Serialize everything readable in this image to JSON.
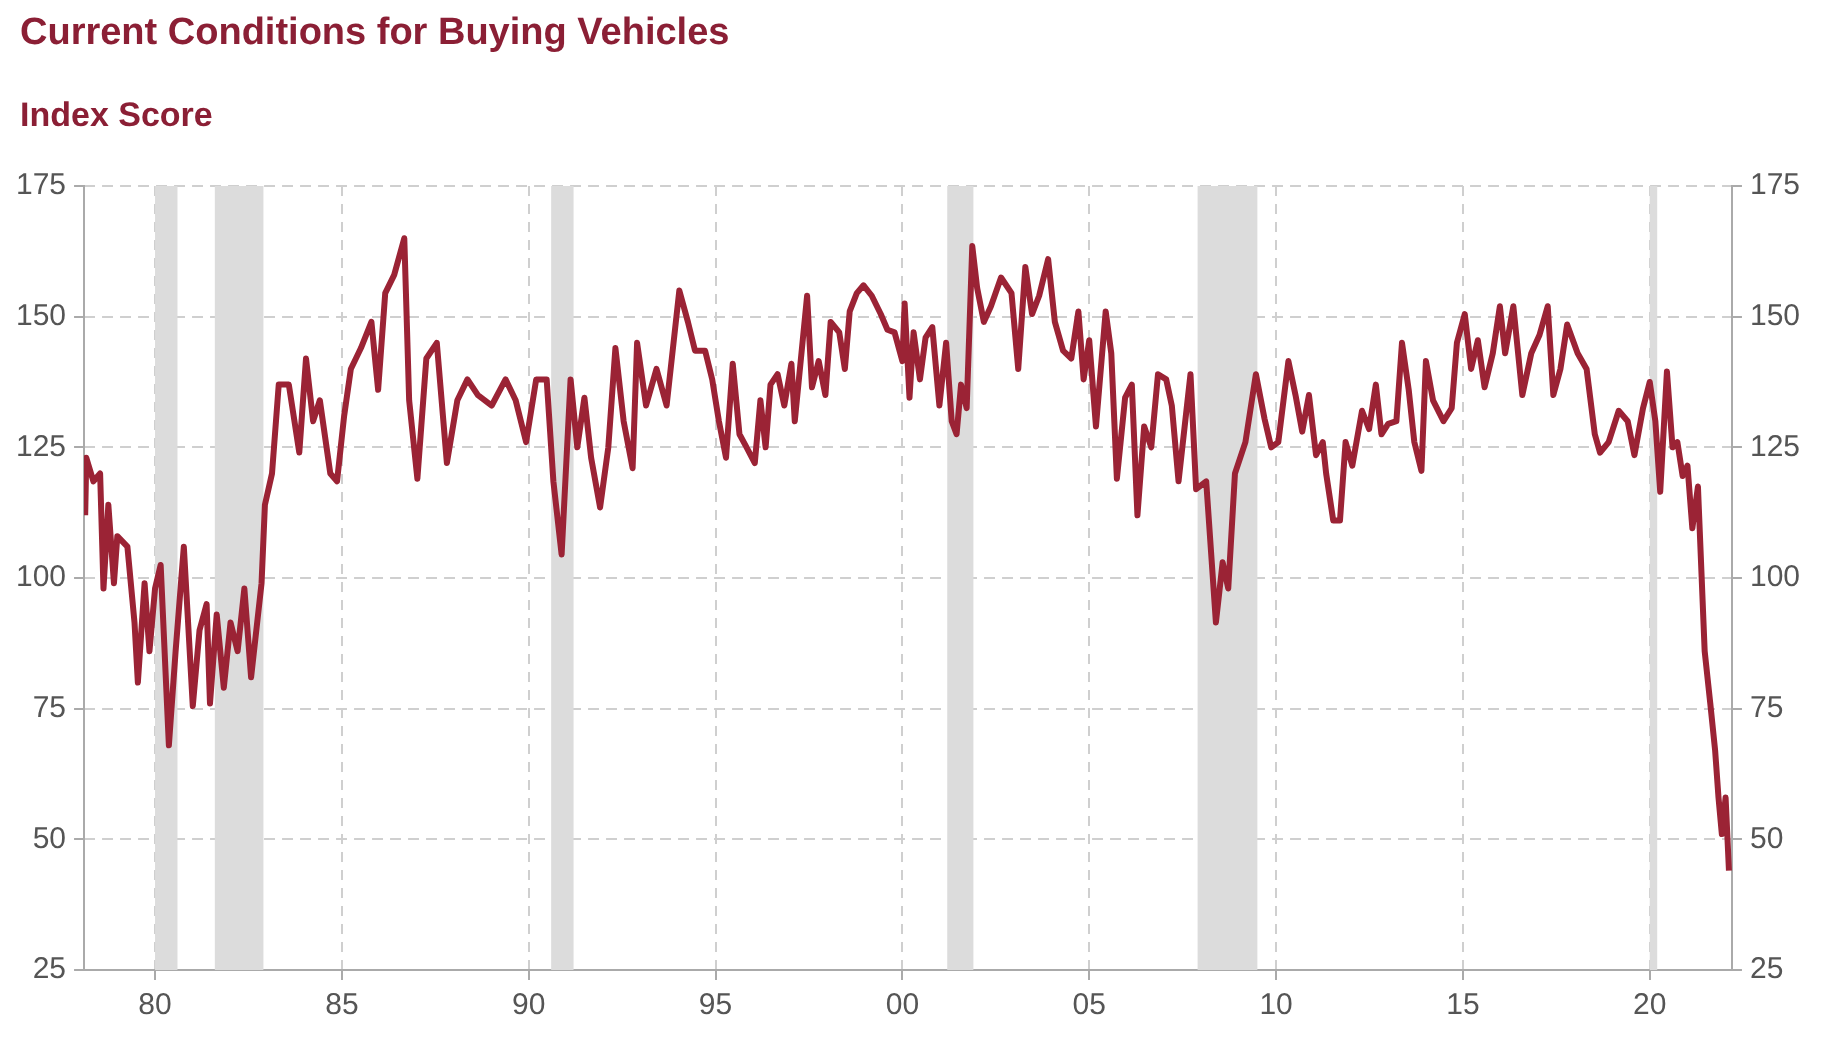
{
  "chart_data": {
    "type": "line",
    "title": "Current Conditions for Buying Vehicles",
    "subtitle": "Index Score",
    "xlim": [
      1978.1,
      2022.2
    ],
    "xticks": [
      {
        "value": 1980,
        "label": "80"
      },
      {
        "value": 1985,
        "label": "85"
      },
      {
        "value": 1990,
        "label": "90"
      },
      {
        "value": 1995,
        "label": "95"
      },
      {
        "value": 2000,
        "label": "00"
      },
      {
        "value": 2005,
        "label": "05"
      },
      {
        "value": 2010,
        "label": "10"
      },
      {
        "value": 2015,
        "label": "15"
      },
      {
        "value": 2020,
        "label": "20"
      }
    ],
    "ylim": [
      25,
      175
    ],
    "yticks": [
      25,
      50,
      75,
      100,
      125,
      150,
      175
    ],
    "y2lim": [
      25,
      175
    ],
    "y2ticks": [
      25,
      50,
      75,
      100,
      125,
      150,
      175
    ],
    "grid": true,
    "legend": false,
    "marker": "none",
    "line_style": "solid",
    "bands": [
      {
        "axis": "x",
        "from": 1980.0,
        "to": 1980.6,
        "color": "#dcdcdc"
      },
      {
        "axis": "x",
        "from": 1981.6,
        "to": 1982.9,
        "color": "#dcdcdc"
      },
      {
        "axis": "x",
        "from": 1990.6,
        "to": 1991.2,
        "color": "#dcdcdc"
      },
      {
        "axis": "x",
        "from": 2001.2,
        "to": 2001.9,
        "color": "#dcdcdc"
      },
      {
        "axis": "x",
        "from": 2007.9,
        "to": 2009.5,
        "color": "#dcdcdc"
      },
      {
        "axis": "x",
        "from": 2020.0,
        "to": 2020.2,
        "color": "#dcdcdc"
      }
    ],
    "series": [
      {
        "color": "#9b2335",
        "x": [
          1978.13,
          1978.16,
          1978.35,
          1978.53,
          1978.62,
          1978.75,
          1978.9,
          1978.99,
          1979.26,
          1979.45,
          1979.54,
          1979.72,
          1979.85,
          1980.0,
          1980.15,
          1980.37,
          1980.55,
          1980.77,
          1981.01,
          1981.19,
          1981.38,
          1981.47,
          1981.65,
          1981.84,
          1982.02,
          1982.21,
          1982.39,
          1982.57,
          1982.85,
          1982.94,
          1983.13,
          1983.31,
          1983.58,
          1983.86,
          1984.04,
          1984.23,
          1984.41,
          1984.69,
          1984.87,
          1985.06,
          1985.24,
          1985.51,
          1985.79,
          1985.97,
          1986.16,
          1986.4,
          1986.67,
          1986.8,
          1987.02,
          1987.26,
          1987.54,
          1987.81,
          1988.09,
          1988.36,
          1988.64,
          1989.01,
          1989.38,
          1989.65,
          1989.93,
          1990.2,
          1990.48,
          1990.66,
          1990.88,
          1991.12,
          1991.3,
          1991.49,
          1991.67,
          1991.91,
          1992.13,
          1992.32,
          1992.54,
          1992.78,
          1992.9,
          1993.14,
          1993.42,
          1993.69,
          1994.03,
          1994.26,
          1994.45,
          1994.72,
          1994.91,
          1995.09,
          1995.28,
          1995.46,
          1995.64,
          1995.83,
          1996.05,
          1996.2,
          1996.34,
          1996.47,
          1996.66,
          1996.84,
          1997.03,
          1997.12,
          1997.45,
          1997.58,
          1997.76,
          1997.94,
          1998.08,
          1998.31,
          1998.46,
          1998.59,
          1998.78,
          1998.96,
          1999.18,
          1999.42,
          1999.6,
          1999.79,
          2000.0,
          2000.06,
          2000.19,
          2000.3,
          2000.47,
          2000.62,
          2000.8,
          2000.99,
          2001.17,
          2001.32,
          2001.45,
          2001.57,
          2001.72,
          2001.87,
          2002.0,
          2002.18,
          2002.37,
          2002.64,
          2002.92,
          2003.1,
          2003.29,
          2003.47,
          2003.66,
          2003.9,
          2004.08,
          2004.3,
          2004.52,
          2004.71,
          2004.85,
          2005.0,
          2005.18,
          2005.44,
          2005.59,
          2005.74,
          2005.96,
          2006.14,
          2006.29,
          2006.47,
          2006.66,
          2006.84,
          2007.06,
          2007.21,
          2007.39,
          2007.71,
          2007.86,
          2008.13,
          2008.39,
          2008.57,
          2008.72,
          2008.9,
          2009.18,
          2009.46,
          2009.69,
          2009.87,
          2010.06,
          2010.33,
          2010.52,
          2010.7,
          2010.88,
          2011.07,
          2011.25,
          2011.34,
          2011.53,
          2011.71,
          2011.86,
          2012.04,
          2012.3,
          2012.49,
          2012.67,
          2012.82,
          2013.0,
          2013.22,
          2013.37,
          2013.55,
          2013.7,
          2013.89,
          2014.01,
          2014.2,
          2014.48,
          2014.7,
          2014.84,
          2015.05,
          2015.22,
          2015.4,
          2015.58,
          2015.8,
          2015.99,
          2016.13,
          2016.35,
          2016.59,
          2016.83,
          2017.05,
          2017.27,
          2017.42,
          2017.61,
          2017.79,
          2018.07,
          2018.31,
          2018.53,
          2018.67,
          2018.9,
          2019.17,
          2019.41,
          2019.59,
          2019.82,
          2020.0,
          2020.15,
          2020.28,
          2020.46,
          2020.61,
          2020.74,
          2020.88,
          2021.01,
          2021.14,
          2021.29,
          2021.47,
          2021.62,
          2021.75,
          2021.84,
          2021.93,
          2022.03,
          2022.12
        ],
        "values": [
          112,
          123,
          118.5,
          120,
          98,
          114,
          99,
          108,
          106,
          91.5,
          80,
          99,
          86,
          98,
          102.5,
          68,
          86,
          106,
          75.5,
          90,
          95,
          76,
          93,
          79,
          91.5,
          86,
          98,
          81,
          99,
          114,
          120,
          137,
          137,
          124,
          142,
          130,
          134,
          120,
          118.5,
          131,
          140,
          144,
          149,
          136,
          154.5,
          158,
          165,
          134,
          119,
          142,
          145,
          122,
          134,
          138,
          135,
          133,
          138,
          134,
          126,
          138,
          138,
          118.5,
          104.5,
          138,
          125,
          134.5,
          123,
          113.5,
          125,
          144,
          130,
          121,
          145,
          133,
          140,
          133,
          155,
          149,
          143.5,
          143.5,
          138,
          130,
          123,
          141,
          127.5,
          125,
          122,
          134,
          125,
          137,
          139,
          133,
          141,
          130,
          154,
          136.5,
          141.5,
          135,
          149,
          147,
          140,
          151,
          154.5,
          156,
          154,
          150.5,
          147.5,
          147,
          141.5,
          152.5,
          134.5,
          147,
          138,
          146,
          148,
          133,
          145,
          130,
          127.5,
          137,
          132.5,
          163.5,
          155.5,
          149,
          152,
          157.5,
          154.5,
          140,
          159.5,
          150.5,
          154,
          161,
          149,
          143.5,
          142,
          151,
          138,
          145.5,
          129,
          151,
          143,
          119,
          134.5,
          137,
          112,
          129,
          125,
          139,
          138,
          133,
          118.5,
          139,
          117,
          118.5,
          91.5,
          103,
          98,
          120,
          126,
          139,
          130.5,
          125,
          126,
          141.5,
          135,
          128,
          135,
          123.5,
          126,
          120,
          111,
          111,
          126,
          121.5,
          132,
          128.5,
          137,
          127.5,
          129.5,
          130,
          145,
          136,
          126,
          120.5,
          141.5,
          134,
          130,
          132.5,
          145,
          150.5,
          140,
          145.5,
          136.5,
          143,
          152,
          143,
          152,
          135,
          143,
          146.5,
          152,
          135,
          140,
          148.5,
          143,
          140,
          127.5,
          124,
          126,
          132,
          130,
          123.5,
          132.5,
          137.5,
          130,
          116.5,
          139.5,
          125,
          126,
          119.5,
          121.5,
          109.5,
          117.5,
          86,
          76,
          67,
          58,
          51,
          58,
          44
        ]
      }
    ]
  }
}
